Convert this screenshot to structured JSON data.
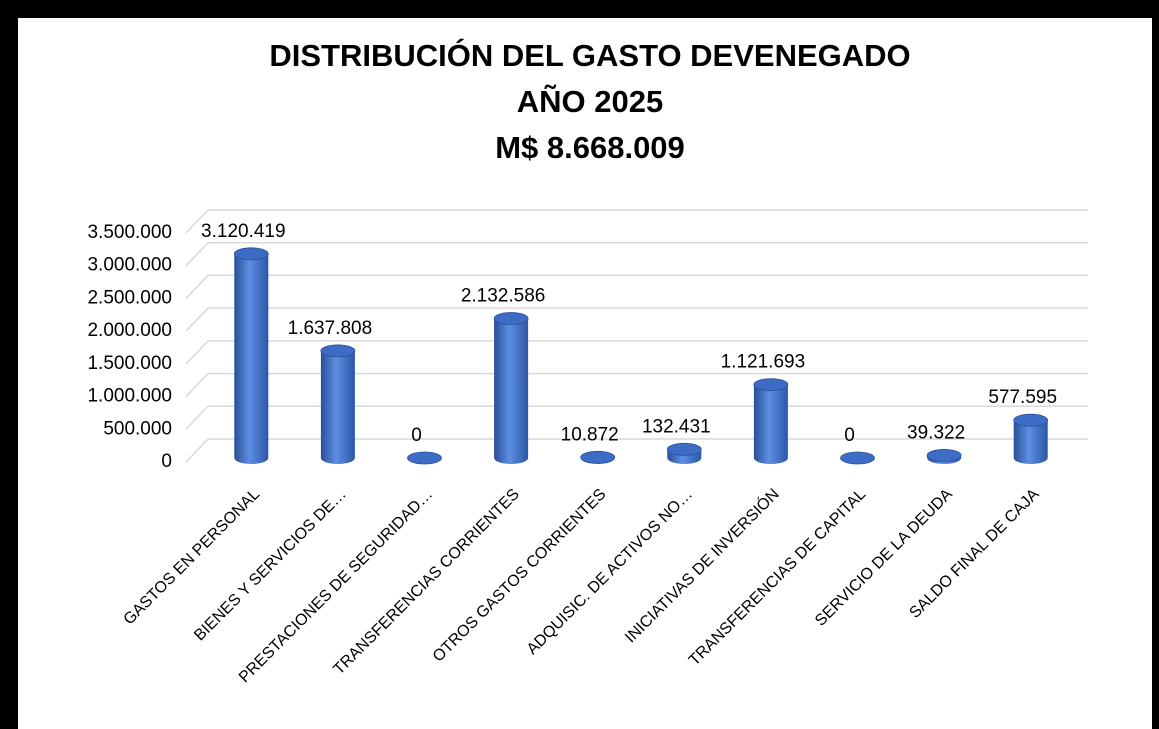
{
  "chart_data": {
    "type": "bar",
    "title": [
      "DISTRIBUCIÓN DEL GASTO DEVENEGADO",
      "AÑO 2025",
      "M$ 8.668.009"
    ],
    "categories": [
      "GASTOS EN PERSONAL",
      "BIENES Y SERVICIOS DE…",
      "PRESTACIONES DE SEGURIDAD…",
      "TRANSFERENCIAS CORRIENTES",
      "OTROS GASTOS CORRIENTES",
      "ADQUISIC. DE ACTIVOS NO…",
      "INICIATIVAS DE INVERSIÓN",
      "TRANSFERENCIAS DE CAPITAL",
      "SERVICIO DE LA DEUDA",
      "SALDO FINAL DE CAJA"
    ],
    "values": [
      3120419,
      1637808,
      0,
      2132586,
      10872,
      132431,
      1121693,
      0,
      39322,
      577595
    ],
    "value_labels": [
      "3.120.419",
      "1.637.808",
      "0",
      "2.132.586",
      "10.872",
      "132.431",
      "1.121.693",
      "0",
      "39.322",
      "577.595"
    ],
    "color": "#4472c4",
    "ylim": [
      0,
      3500000
    ],
    "yticks": [
      0,
      {
        "value": 500000,
        "label": "500.000"
      },
      {
        "value": 1000000,
        "label": "1.000.000"
      },
      {
        "value": 1500000,
        "label": "1.500.000"
      },
      {
        "value": 2000000,
        "label": "2.000.000"
      },
      {
        "value": 2500000,
        "label": "2.500.000"
      },
      {
        "value": 3000000,
        "label": "3.000.000"
      },
      {
        "value": 3500000,
        "label": "3.500.000"
      }
    ],
    "grid": true
  }
}
